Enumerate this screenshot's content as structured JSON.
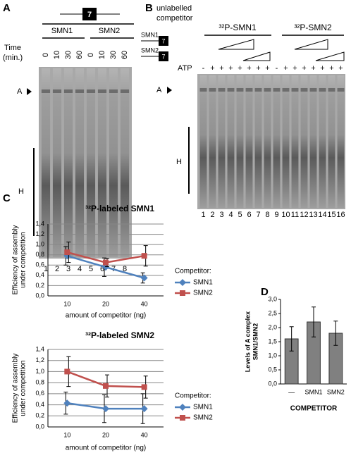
{
  "panels": {
    "A": {
      "letter": "A",
      "exon": "7",
      "groups": [
        "SMN1",
        "SMN2"
      ],
      "time_label": [
        "Time",
        "(min.)"
      ],
      "times": [
        "0",
        "10",
        "30",
        "60",
        "0",
        "10",
        "30",
        "60"
      ],
      "band_a": "A",
      "band_h": "H",
      "lanes": [
        "1",
        "2",
        "3",
        "4",
        "5",
        "6",
        "7",
        "8"
      ]
    },
    "B": {
      "letter": "B",
      "competitor_label": [
        "unlabelled",
        "competitor"
      ],
      "competitors": [
        "SMN1",
        "SMN2"
      ],
      "exon": "7",
      "probes": [
        "³²P-SMN1",
        "³²P-SMN2"
      ],
      "atp": "ATP",
      "atp_signs": [
        "-",
        "+",
        "+",
        "+",
        "+",
        "+",
        "+",
        "+",
        "-",
        "+",
        "+",
        "+",
        "+",
        "+",
        "+",
        "+"
      ],
      "band_a": "A",
      "band_h": "H",
      "lanes": [
        "1",
        "2",
        "3",
        "4",
        "5",
        "6",
        "7",
        "8",
        "9",
        "10",
        "11",
        "12",
        "13",
        "14",
        "15",
        "16"
      ]
    },
    "C": {
      "letter": "C"
    },
    "D": {
      "letter": "D"
    }
  },
  "chart_data": [
    {
      "type": "line",
      "title": "³²P-labeled SMN1",
      "categories": [
        "10",
        "20",
        "40"
      ],
      "xlabel": "amount of competitor (ng)",
      "ylabel": [
        "Efficiency of assembly",
        "under competition"
      ],
      "ylim": [
        0,
        1.4
      ],
      "yticks": [
        {
          "value": 0,
          "label": "0,0"
        },
        {
          "value": 0.2,
          "label": "0,2"
        },
        {
          "value": 0.4,
          "label": "0,4"
        },
        {
          "value": 0.6,
          "label": "0,6"
        },
        {
          "value": 0.8,
          "label": "0,8"
        },
        {
          "value": 1,
          "label": "1,0"
        },
        {
          "value": 1.2,
          "label": "1,2"
        },
        {
          "value": 1.4,
          "label": "1,4"
        }
      ],
      "grid": true,
      "legend_title": "Competitor:",
      "legend": "right",
      "series": [
        {
          "name": "SMN1",
          "color": "#4f81bd",
          "marker": "diamond",
          "values": [
            0.78,
            0.56,
            0.35
          ],
          "errors": [
            0.18,
            0.18,
            0.1
          ]
        },
        {
          "name": "SMN2",
          "color": "#c0504d",
          "marker": "square",
          "values": [
            0.85,
            0.65,
            0.78
          ],
          "errors": [
            0.2,
            0.08,
            0.2
          ]
        }
      ]
    },
    {
      "type": "line",
      "title": "³²P-labeled SMN2",
      "categories": [
        "10",
        "20",
        "40"
      ],
      "xlabel": "amount of competitor (ng)",
      "ylabel": [
        "Efficiency of assembly",
        "under competition"
      ],
      "ylim": [
        0,
        1.4
      ],
      "yticks": [
        {
          "value": 0,
          "label": "0,0"
        },
        {
          "value": 0.2,
          "label": "0,2"
        },
        {
          "value": 0.4,
          "label": "0,4"
        },
        {
          "value": 0.6,
          "label": "0,6"
        },
        {
          "value": 0.8,
          "label": "0,8"
        },
        {
          "value": 1,
          "label": "1,0"
        },
        {
          "value": 1.2,
          "label": "1,2"
        },
        {
          "value": 1.4,
          "label": "1,4"
        }
      ],
      "grid": true,
      "legend_title": "Competitor:",
      "legend": "right",
      "series": [
        {
          "name": "SMN1",
          "color": "#4f81bd",
          "marker": "diamond",
          "values": [
            0.43,
            0.33,
            0.33
          ],
          "errors": [
            0.2,
            0.25,
            0.27
          ]
        },
        {
          "name": "SMN2",
          "color": "#c0504d",
          "marker": "square",
          "values": [
            1.0,
            0.74,
            0.72
          ],
          "errors": [
            0.27,
            0.2,
            0.2
          ]
        }
      ]
    },
    {
      "type": "bar",
      "categories": [
        "—",
        "SMN1",
        "SMN2"
      ],
      "values": [
        1.6,
        2.2,
        1.8
      ],
      "errors": [
        0.43,
        0.53,
        0.43
      ],
      "color": "#808080",
      "xlabel": "COMPETITOR",
      "ylabel": [
        "Levels of A complex",
        "SMN1/SMN2"
      ],
      "ylim": [
        0,
        3
      ],
      "yticks": [
        {
          "value": 0,
          "label": "0,0"
        },
        {
          "value": 0.5,
          "label": "0,5"
        },
        {
          "value": 1,
          "label": "1,0"
        },
        {
          "value": 1.5,
          "label": "1,5"
        },
        {
          "value": 2,
          "label": "2,0"
        },
        {
          "value": 2.5,
          "label": "2,5"
        },
        {
          "value": 3,
          "label": "3,0"
        }
      ],
      "grid": false
    }
  ]
}
